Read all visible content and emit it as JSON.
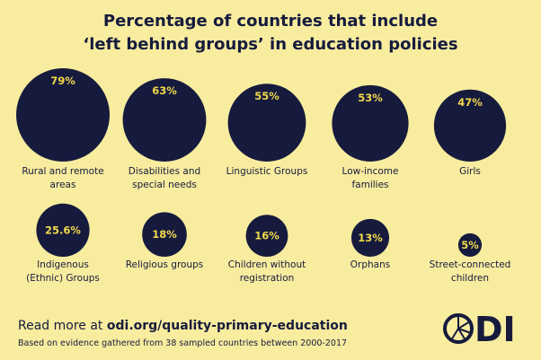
{
  "chart_data": {
    "type": "bubble",
    "title": [
      "Percentage of countries that include",
      "‘left behind groups’ in education policies"
    ],
    "categories": [
      "Rural and remote areas",
      "Disabilities and special needs",
      "Linguistic Groups",
      "Low-income families",
      "Girls",
      "Indigenous (Ethnic) Groups",
      "Religious groups",
      "Children without registration",
      "Orphans",
      "Street-connected children"
    ],
    "values": [
      79,
      63,
      55,
      53,
      47,
      25.6,
      18,
      16,
      13,
      5
    ],
    "value_labels": [
      "79%",
      "63%",
      "55%",
      "53%",
      "47%",
      "25.6%",
      "18%",
      "16%",
      "13%",
      "5%"
    ],
    "color": "#161b3d",
    "label_color": "#f2d94b"
  },
  "footer": {
    "lead": "Read more at ",
    "link": "odi.org/quality-primary-education",
    "note": "Based on evidence gathered from 38 sampled countries between 2000-2017",
    "logo": "DI"
  }
}
